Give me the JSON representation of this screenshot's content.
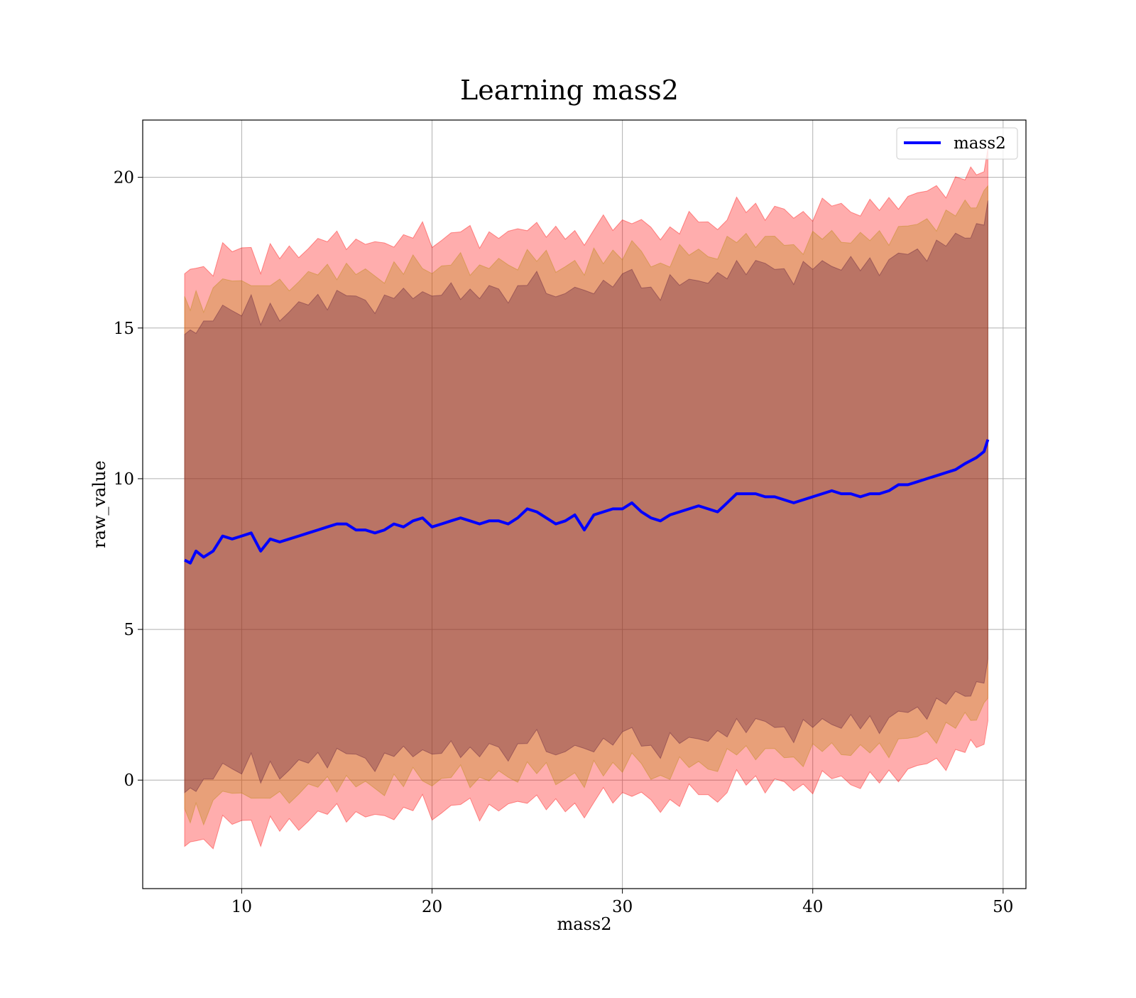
{
  "chart_data": {
    "type": "line",
    "title": "Learning mass2",
    "xlabel": "mass2",
    "ylabel": "raw_value",
    "xlim": [
      4.8,
      51.2
    ],
    "ylim": [
      -3.6,
      21.9
    ],
    "xticks": [
      10,
      20,
      30,
      40,
      50
    ],
    "yticks": [
      0,
      5,
      10,
      15,
      20
    ],
    "grid": true,
    "legend": {
      "position": "top-right",
      "entries": [
        "mass2"
      ]
    },
    "series": [
      {
        "name": "mass2",
        "color": "#0000ff",
        "x": [
          7.0,
          7.3,
          7.6,
          8.0,
          8.5,
          9.0,
          9.5,
          10.0,
          10.5,
          11.0,
          11.5,
          12.0,
          12.5,
          13.0,
          13.5,
          14.0,
          14.5,
          15.0,
          15.5,
          16.0,
          16.5,
          17.0,
          17.5,
          18.0,
          18.5,
          19.0,
          19.5,
          20.0,
          20.5,
          21.0,
          21.5,
          22.0,
          22.5,
          23.0,
          23.5,
          24.0,
          24.5,
          25.0,
          25.5,
          26.0,
          26.5,
          27.0,
          27.5,
          28.0,
          28.5,
          29.0,
          29.5,
          30.0,
          30.5,
          31.0,
          31.5,
          32.0,
          32.5,
          33.0,
          33.5,
          34.0,
          34.5,
          35.0,
          35.5,
          36.0,
          36.5,
          37.0,
          37.5,
          38.0,
          38.5,
          39.0,
          39.5,
          40.0,
          40.5,
          41.0,
          41.5,
          42.0,
          42.5,
          43.0,
          43.5,
          44.0,
          44.5,
          45.0,
          45.5,
          46.0,
          46.5,
          47.0,
          47.5,
          48.0,
          48.3,
          48.6,
          49.0,
          49.2
        ],
        "y": [
          7.3,
          7.2,
          7.6,
          7.4,
          7.6,
          8.1,
          8.0,
          8.1,
          8.2,
          7.6,
          8.0,
          7.9,
          8.0,
          8.1,
          8.2,
          8.3,
          8.4,
          8.5,
          8.5,
          8.3,
          8.3,
          8.2,
          8.3,
          8.5,
          8.4,
          8.6,
          8.7,
          8.4,
          8.5,
          8.6,
          8.7,
          8.6,
          8.5,
          8.6,
          8.6,
          8.5,
          8.7,
          9.0,
          8.9,
          8.7,
          8.5,
          8.6,
          8.8,
          8.3,
          8.8,
          8.9,
          9.0,
          9.0,
          9.2,
          8.9,
          8.7,
          8.6,
          8.8,
          8.9,
          9.0,
          9.1,
          9.0,
          8.9,
          9.2,
          9.5,
          9.5,
          9.5,
          9.4,
          9.4,
          9.3,
          9.2,
          9.3,
          9.4,
          9.5,
          9.6,
          9.5,
          9.5,
          9.4,
          9.5,
          9.5,
          9.6,
          9.8,
          9.8,
          9.9,
          10.0,
          10.1,
          10.2,
          10.3,
          10.5,
          10.6,
          10.7,
          10.9,
          11.3
        ]
      }
    ],
    "bands": [
      {
        "color": "#ff0000",
        "opacity": 0.32,
        "lower_offset": -9.5,
        "upper_offset": 9.5
      },
      {
        "color": "#b8870b",
        "opacity": 0.32,
        "lower_offset": -8.5,
        "upper_offset": 8.5
      },
      {
        "color": "#5a1a3a",
        "opacity": 0.32,
        "lower_offset": -7.6,
        "upper_offset": 7.6
      }
    ]
  }
}
